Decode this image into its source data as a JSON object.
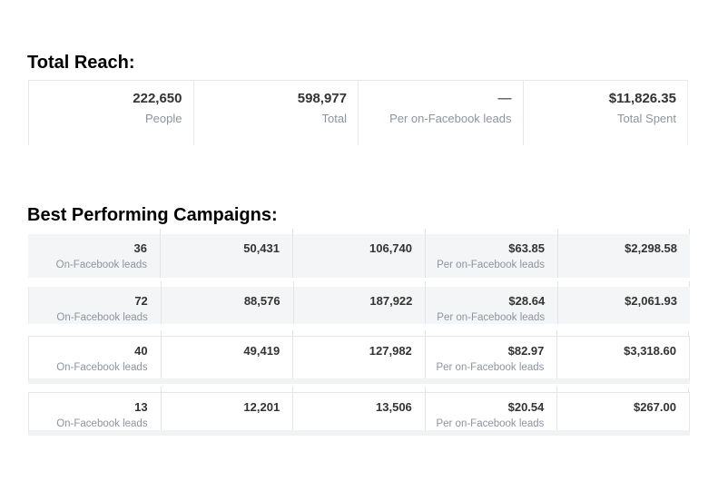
{
  "colors": {
    "value_text": "#333333",
    "label_text": "#8d949e",
    "row_fill": "#f4f5f6",
    "border": "#e5e7e9",
    "heading_text": "#000000"
  },
  "total_reach": {
    "heading": "Total Reach:",
    "stats": [
      {
        "value": "222,650",
        "label": "People"
      },
      {
        "value": "598,977",
        "label": "Total"
      },
      {
        "value": "—",
        "label": "Per on-Facebook leads"
      },
      {
        "value": "$11,826.35",
        "label": "Total Spent"
      }
    ]
  },
  "campaigns": {
    "heading": "Best Performing Campaigns:",
    "rows": [
      {
        "cells": [
          {
            "value": "36",
            "label": "On-Facebook leads"
          },
          {
            "value": "50,431"
          },
          {
            "value": "106,740"
          },
          {
            "value": "$63.85",
            "label": "Per on-Facebook leads"
          },
          {
            "value": "$2,298.58"
          }
        ]
      },
      {
        "cells": [
          {
            "value": "72",
            "label": "On-Facebook leads"
          },
          {
            "value": "88,576"
          },
          {
            "value": "187,922"
          },
          {
            "value": "$28.64",
            "label": "Per on-Facebook leads"
          },
          {
            "value": "$2,061.93"
          }
        ]
      },
      {
        "cells": [
          {
            "value": "40",
            "label": "On-Facebook leads"
          },
          {
            "value": "49,419"
          },
          {
            "value": "127,982"
          },
          {
            "value": "$82.97",
            "label": "Per on-Facebook leads"
          },
          {
            "value": "$3,318.60"
          }
        ]
      },
      {
        "cells": [
          {
            "value": "13",
            "label": "On-Facebook leads"
          },
          {
            "value": "12,201"
          },
          {
            "value": "13,506"
          },
          {
            "value": "$20.54",
            "label": "Per on-Facebook leads"
          },
          {
            "value": "$267.00"
          }
        ]
      }
    ]
  }
}
